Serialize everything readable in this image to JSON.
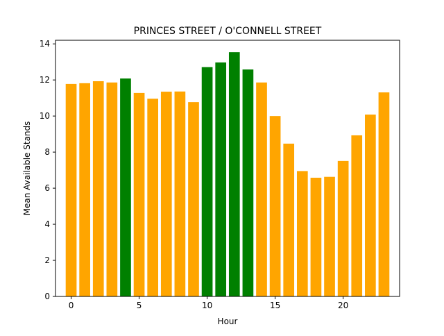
{
  "chart_data": {
    "type": "bar",
    "title": "PRINCES STREET / O'CONNELL STREET",
    "xlabel": "Hour",
    "ylabel": "Mean Available Stands",
    "x": [
      0,
      1,
      2,
      3,
      4,
      5,
      6,
      7,
      8,
      9,
      10,
      11,
      12,
      13,
      14,
      15,
      16,
      17,
      18,
      19,
      20,
      21,
      22,
      23
    ],
    "values": [
      11.78,
      11.82,
      11.93,
      11.86,
      12.08,
      11.28,
      10.96,
      11.35,
      11.36,
      10.77,
      12.71,
      12.97,
      13.54,
      12.58,
      11.86,
      10.0,
      8.47,
      6.95,
      6.58,
      6.63,
      7.51,
      8.93,
      10.08,
      11.31
    ],
    "bar_colors": [
      "#ffa500",
      "#ffa500",
      "#ffa500",
      "#ffa500",
      "#008000",
      "#ffa500",
      "#ffa500",
      "#ffa500",
      "#ffa500",
      "#ffa500",
      "#008000",
      "#008000",
      "#008000",
      "#008000",
      "#ffa500",
      "#ffa500",
      "#ffa500",
      "#ffa500",
      "#ffa500",
      "#ffa500",
      "#ffa500",
      "#ffa500",
      "#ffa500",
      "#ffa500"
    ],
    "xlim": [
      -1.15,
      24.15
    ],
    "ylim": [
      0,
      14.2
    ],
    "xticks": [
      "0",
      "5",
      "10",
      "15",
      "20"
    ],
    "yticks": [
      "0",
      "2",
      "4",
      "6",
      "8",
      "10",
      "12",
      "14"
    ],
    "grid": false,
    "legend": "none"
  }
}
